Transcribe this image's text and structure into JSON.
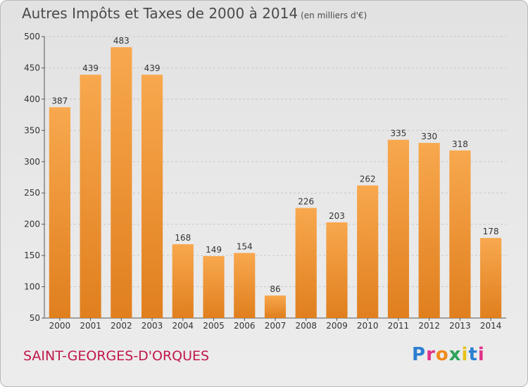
{
  "title": "Autres Impôts et Taxes de 2000 à 2014",
  "unit": "(en milliers d'€)",
  "commune": "SAINT-GEORGES-D'ORQUES",
  "logo": "Proxiti",
  "colors": {
    "bar_light": "#f8a84e",
    "bar_dark": "#e07f1e",
    "grid": "#c8c8c8",
    "commune": "#c0184a"
  },
  "chart_data": {
    "type": "bar",
    "title": "Autres Impôts et Taxes de 2000 à 2014",
    "categories": [
      "2000",
      "2001",
      "2002",
      "2003",
      "2004",
      "2005",
      "2006",
      "2007",
      "2008",
      "2009",
      "2010",
      "2011",
      "2012",
      "2013",
      "2014"
    ],
    "values": [
      387,
      439,
      483,
      439,
      168,
      149,
      154,
      86,
      226,
      203,
      262,
      335,
      330,
      318,
      178
    ],
    "ylim": [
      50,
      500
    ],
    "yticks": [
      50,
      100,
      150,
      200,
      250,
      300,
      350,
      400,
      450,
      500
    ],
    "grid": true
  }
}
